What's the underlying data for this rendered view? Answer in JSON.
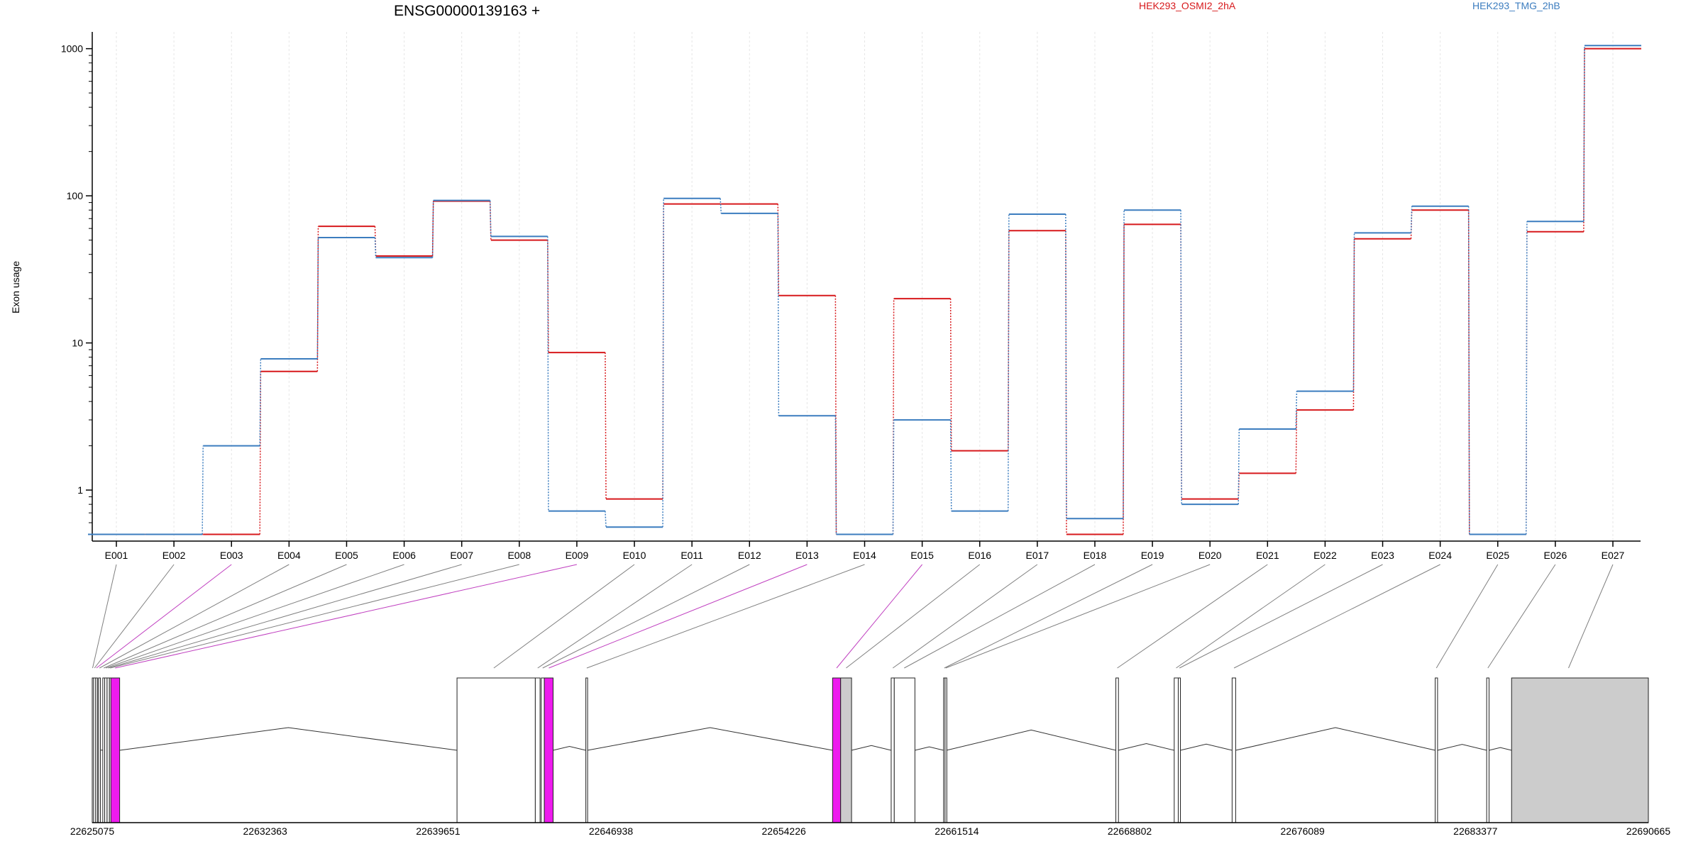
{
  "chart_data": {
    "type": "line",
    "title": "ENSG00000139163 +",
    "ylabel": "Exon usage",
    "xlabel": "",
    "y_scale": "log",
    "y_ticks": [
      1,
      10,
      100,
      1000
    ],
    "y_tick_labels": [
      "1",
      "10",
      "100",
      "1000"
    ],
    "ylim": [
      0.45,
      1300
    ],
    "grid": true,
    "legend_position": "top",
    "categories": [
      "E001",
      "E002",
      "E003",
      "E004",
      "E005",
      "E006",
      "E007",
      "E008",
      "E009",
      "E010",
      "E011",
      "E012",
      "E013",
      "E014",
      "E015",
      "E016",
      "E017",
      "E018",
      "E019",
      "E020",
      "E021",
      "E022",
      "E023",
      "E024",
      "E025",
      "E026",
      "E027"
    ],
    "series": [
      {
        "name": "HEK293_OSMI2_2hA",
        "color": "#d7191c",
        "values": [
          0.5,
          0.5,
          0.5,
          6.4,
          62,
          39,
          92,
          50,
          8.6,
          0.87,
          88,
          88,
          21,
          0.5,
          20,
          1.85,
          58,
          0.5,
          64,
          0.87,
          1.3,
          3.5,
          51,
          80,
          0.5,
          57,
          1000
        ]
      },
      {
        "name": "HEK293_TMG_2hB",
        "color": "#3c7dbf",
        "values": [
          0.5,
          0.5,
          2.0,
          7.8,
          52,
          38,
          93,
          53,
          0.72,
          0.56,
          96,
          76,
          3.2,
          0.5,
          3.0,
          0.72,
          75,
          0.64,
          80,
          0.8,
          2.6,
          4.7,
          56,
          85,
          0.5,
          67,
          1050
        ]
      }
    ],
    "gene_model": {
      "coordinate_labels": [
        "22625075",
        "22632363",
        "22639651",
        "22646938",
        "22654226",
        "22661514",
        "22668802",
        "22676089",
        "22683377",
        "22690665"
      ],
      "coord_range": [
        22625075,
        22690665
      ],
      "exon_colors": {
        "default": "#ffffff",
        "highlight": "#ee1bee",
        "utr": "#cccccc"
      },
      "connector_colors": {
        "default": "#808080",
        "highlight": "#c040c0"
      },
      "exons": [
        {
          "start": 22625075,
          "end": 22625130,
          "fill": "default",
          "label": "E001",
          "highlight": false
        },
        {
          "start": 22625130,
          "end": 22625220,
          "fill": "default",
          "label": "E002",
          "highlight": false
        },
        {
          "start": 22625220,
          "end": 22625280,
          "fill": "default",
          "label": "E003",
          "highlight": true
        },
        {
          "start": 22625340,
          "end": 22625420,
          "fill": "default",
          "label": "E004",
          "highlight": false
        },
        {
          "start": 22625520,
          "end": 22625600,
          "fill": "default",
          "label": "E005",
          "highlight": false
        },
        {
          "start": 22625600,
          "end": 22625700,
          "fill": "default",
          "label": "E006",
          "highlight": false
        },
        {
          "start": 22625700,
          "end": 22625800,
          "fill": "default",
          "label": "E007",
          "highlight": false
        },
        {
          "start": 22625800,
          "end": 22625860,
          "fill": "default",
          "label": "E008",
          "highlight": false
        },
        {
          "start": 22625860,
          "end": 22626230,
          "fill": "highlight",
          "label": "E009",
          "highlight": true
        },
        {
          "start": 22640450,
          "end": 22643750,
          "fill": "default",
          "label": "E010",
          "highlight": false
        },
        {
          "start": 22643750,
          "end": 22643950,
          "fill": "default",
          "label": "E011",
          "highlight": false
        },
        {
          "start": 22644000,
          "end": 22644130,
          "fill": "default",
          "label": "E012",
          "highlight": false
        },
        {
          "start": 22644130,
          "end": 22644500,
          "fill": "highlight",
          "label": "E013",
          "highlight": true
        },
        {
          "start": 22645880,
          "end": 22645950,
          "fill": "default",
          "label": "E014",
          "highlight": false
        },
        {
          "start": 22656280,
          "end": 22656620,
          "fill": "highlight",
          "label": "E015",
          "highlight": true
        },
        {
          "start": 22656620,
          "end": 22657080,
          "fill": "utr",
          "label": "E016",
          "highlight": false
        },
        {
          "start": 22658750,
          "end": 22658880,
          "fill": "default",
          "label": "E017",
          "highlight": false
        },
        {
          "start": 22658880,
          "end": 22659750,
          "fill": "default",
          "label": "E018",
          "highlight": false
        },
        {
          "start": 22660960,
          "end": 22661020,
          "fill": "default",
          "label": "E019",
          "highlight": false
        },
        {
          "start": 22661020,
          "end": 22661080,
          "fill": "default",
          "label": "E020",
          "highlight": false
        },
        {
          "start": 22668220,
          "end": 22668330,
          "fill": "default",
          "label": "E021",
          "highlight": false
        },
        {
          "start": 22670680,
          "end": 22670850,
          "fill": "default",
          "label": "E022",
          "highlight": false
        },
        {
          "start": 22670850,
          "end": 22670940,
          "fill": "default",
          "label": "E023",
          "highlight": false
        },
        {
          "start": 22673120,
          "end": 22673270,
          "fill": "default",
          "label": "E024",
          "highlight": false
        },
        {
          "start": 22681680,
          "end": 22681780,
          "fill": "default",
          "label": "E025",
          "highlight": false
        },
        {
          "start": 22683850,
          "end": 22683950,
          "fill": "default",
          "label": "E026",
          "highlight": false
        },
        {
          "start": 22684900,
          "end": 22690665,
          "fill": "utr",
          "label": "E027",
          "highlight": false
        }
      ],
      "connector_targets": [
        22625090,
        22625170,
        22625250,
        22625380,
        22625560,
        22625650,
        22625750,
        22625830,
        22626040,
        22642000,
        22643850,
        22644060,
        22644320,
        22645920,
        22656450,
        22656850,
        22658820,
        22659300,
        22660990,
        22661050,
        22668280,
        22670760,
        22670900,
        22673200,
        22681730,
        22683900,
        22687300
      ]
    }
  }
}
